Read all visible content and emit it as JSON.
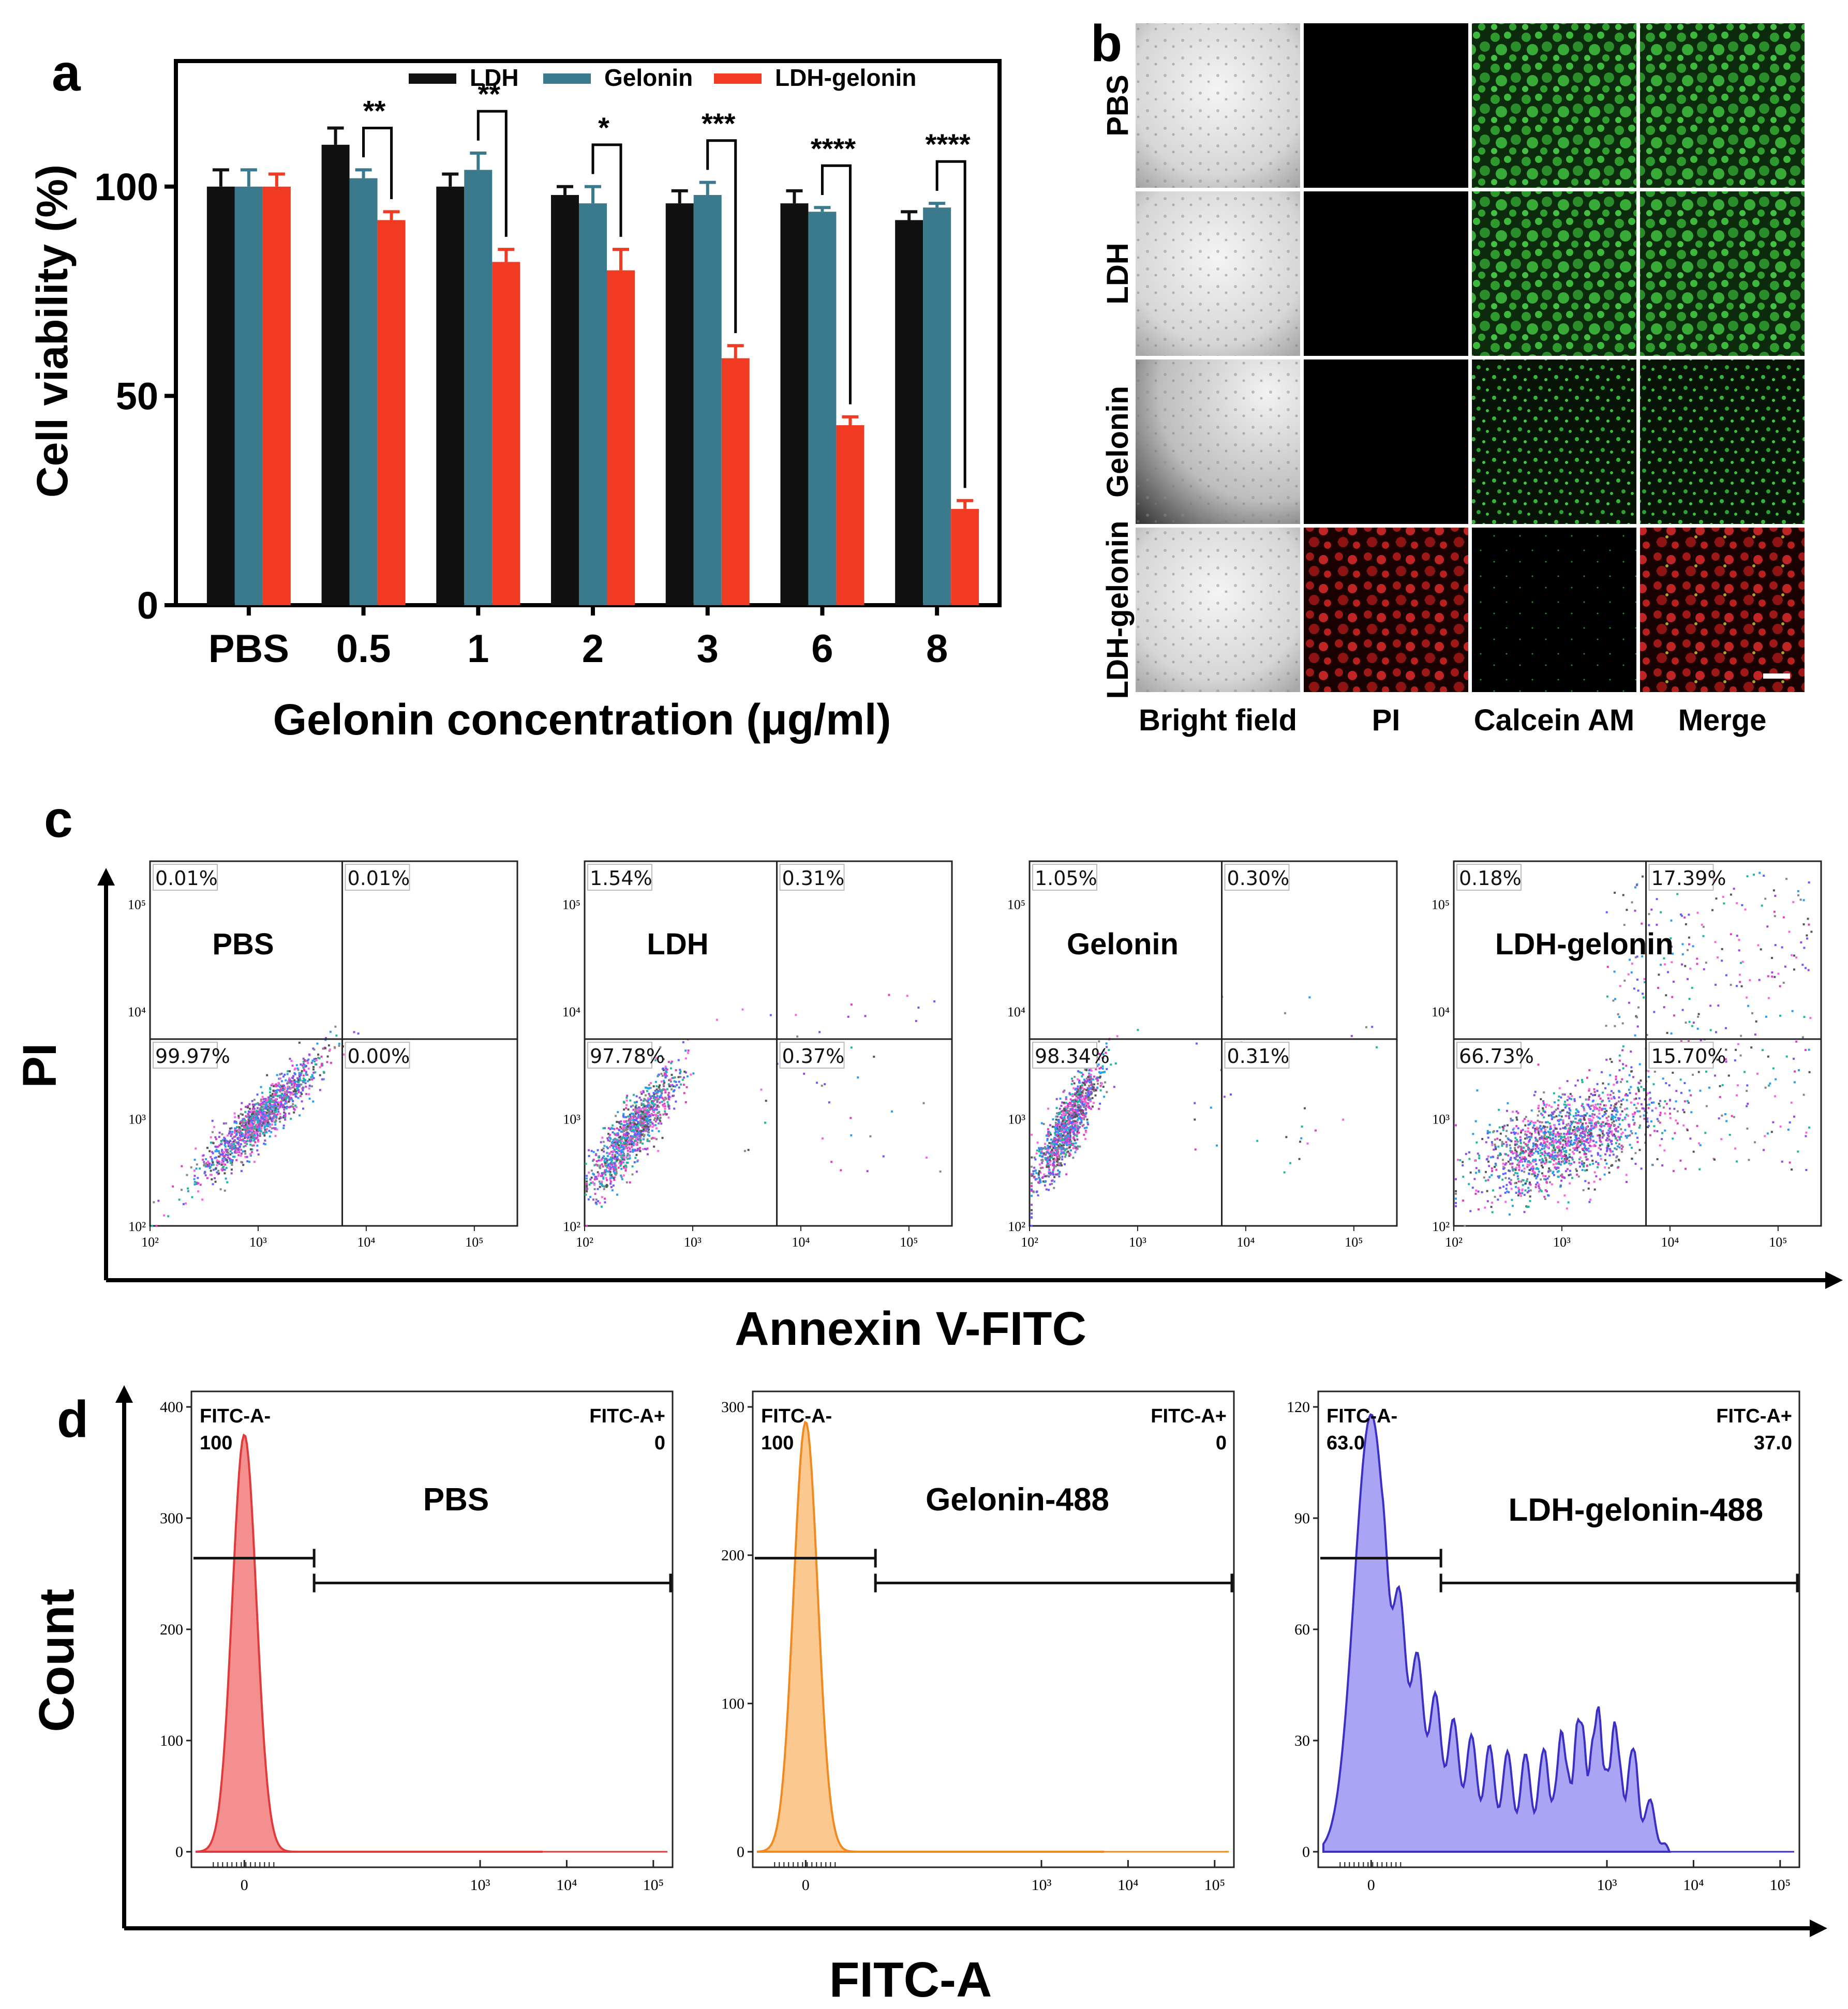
{
  "panel_letters": {
    "a": "a",
    "b": "b",
    "c": "c",
    "d": "d"
  },
  "chart_data": [
    {
      "id": "a",
      "type": "bar",
      "categories": [
        "PBS",
        "0.5",
        "1",
        "2",
        "3",
        "6",
        "8"
      ],
      "series": [
        {
          "name": "LDH",
          "color": "#111111",
          "values": [
            100,
            110,
            100,
            98,
            96,
            96,
            92
          ],
          "errors": [
            4,
            4,
            3,
            2,
            3,
            3,
            2
          ]
        },
        {
          "name": "Gelonin",
          "color": "#3a7a8c",
          "values": [
            100,
            102,
            104,
            96,
            98,
            94,
            95
          ],
          "errors": [
            4,
            2,
            4,
            4,
            3,
            1,
            1
          ]
        },
        {
          "name": "LDH-gelonin",
          "color": "#f03a22",
          "values": [
            100,
            92,
            82,
            80,
            59,
            43,
            23
          ],
          "errors": [
            3,
            2,
            3,
            5,
            3,
            2,
            2
          ]
        }
      ],
      "significance": [
        "",
        "**",
        "**",
        "*",
        "***",
        "****",
        "****"
      ],
      "ylabel": "Cell viability (%)",
      "xlabel": "Gelonin concentration (μg/ml)",
      "ylim": [
        0,
        130
      ],
      "yticks": [
        0,
        50,
        100
      ]
    },
    {
      "id": "c",
      "type": "scatter",
      "xlabel": "Annexin V-FITC",
      "ylabel": "PI",
      "axis": "log",
      "range": [
        100,
        250000
      ],
      "ticks": [
        "10²",
        "10³",
        "10⁴",
        "10⁵"
      ],
      "plots": [
        {
          "label": "PBS",
          "quadrants": {
            "UL": "0.01%",
            "UR": "0.01%",
            "LL": "99.97%",
            "LR": "0.00%"
          }
        },
        {
          "label": "LDH",
          "quadrants": {
            "UL": "1.54%",
            "UR": "0.31%",
            "LL": "97.78%",
            "LR": "0.37%"
          }
        },
        {
          "label": "Gelonin",
          "quadrants": {
            "UL": "1.05%",
            "UR": "0.30%",
            "LL": "98.34%",
            "LR": "0.31%"
          }
        },
        {
          "label": "LDH-gelonin",
          "quadrants": {
            "UL": "0.18%",
            "UR": "17.39%",
            "LL": "66.73%",
            "LR": "15.70%"
          }
        }
      ]
    },
    {
      "id": "d",
      "type": "area",
      "xlabel": "FITC-A",
      "ylabel": "Count",
      "xticks": [
        "0",
        "10³",
        "10⁴",
        "10⁵"
      ],
      "histograms": [
        {
          "label": "PBS",
          "color": "#f06a6a",
          "stroke": "#e03a3a",
          "ymax": 400,
          "yticks": [
            0,
            100,
            200,
            300,
            400
          ],
          "gate_neg_label": "FITC-A-",
          "gate_neg_value": "100",
          "gate_pos_label": "FITC-A+",
          "gate_pos_value": "0",
          "peak_count": 375
        },
        {
          "label": "Gelonin-488",
          "color": "#f9b56a",
          "stroke": "#f08a20",
          "ymax": 300,
          "yticks": [
            0,
            100,
            200,
            300
          ],
          "gate_neg_label": "FITC-A-",
          "gate_neg_value": "100",
          "gate_pos_label": "FITC-A+",
          "gate_pos_value": "0",
          "peak_count": 290
        },
        {
          "label": "LDH-gelonin-488",
          "color": "#8c86f0",
          "stroke": "#3b2fc4",
          "ymax": 120,
          "yticks": [
            0,
            30,
            60,
            90,
            120
          ],
          "gate_neg_label": "FITC-A-",
          "gate_neg_value": "63.0",
          "gate_pos_label": "FITC-A+",
          "gate_pos_value": "37.0",
          "peak_count": 118
        }
      ]
    }
  ],
  "microscopy": {
    "rows": [
      "PBS",
      "LDH",
      "Gelonin",
      "LDH-gelonin"
    ],
    "columns": [
      "Bright field",
      "PI",
      "Calcein AM",
      "Merge"
    ]
  }
}
